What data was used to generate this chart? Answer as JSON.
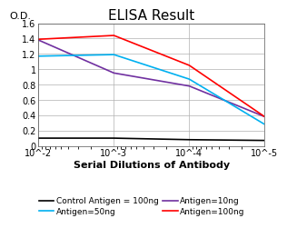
{
  "title": "ELISA Result",
  "xlabel": "Serial Dilutions of Antibody",
  "ylabel": "O.D.",
  "ylim": [
    0,
    1.6
  ],
  "yticks": [
    0,
    0.2,
    0.4,
    0.6,
    0.8,
    1.0,
    1.2,
    1.4,
    1.6
  ],
  "ytick_labels": [
    "0",
    "0.2",
    "0.4",
    "0.6",
    "0.8",
    "1",
    "1.2",
    "1.4",
    "1.6"
  ],
  "x_values": [
    0.01,
    0.001,
    0.0001,
    1e-05
  ],
  "x_labels": [
    "10^-2",
    "10^-3",
    "10^-4",
    "10^-5"
  ],
  "series": [
    {
      "label": "Control Antigen = 100ng",
      "color": "#000000",
      "points": [
        0.1,
        0.1,
        0.08,
        0.07
      ]
    },
    {
      "label": "Antigen=10ng",
      "color": "#7030a0",
      "points": [
        1.38,
        0.95,
        0.78,
        0.38
      ]
    },
    {
      "label": "Antigen=50ng",
      "color": "#00b0f0",
      "points": [
        1.17,
        1.19,
        0.87,
        0.28
      ]
    },
    {
      "label": "Antigen=100ng",
      "color": "#ff0000",
      "points": [
        1.39,
        1.44,
        1.05,
        0.38
      ]
    }
  ],
  "background_color": "#ffffff",
  "grid_color": "#b0b0b0",
  "title_fontsize": 11,
  "axis_label_fontsize": 8,
  "tick_fontsize": 7,
  "legend_fontsize": 6.5
}
